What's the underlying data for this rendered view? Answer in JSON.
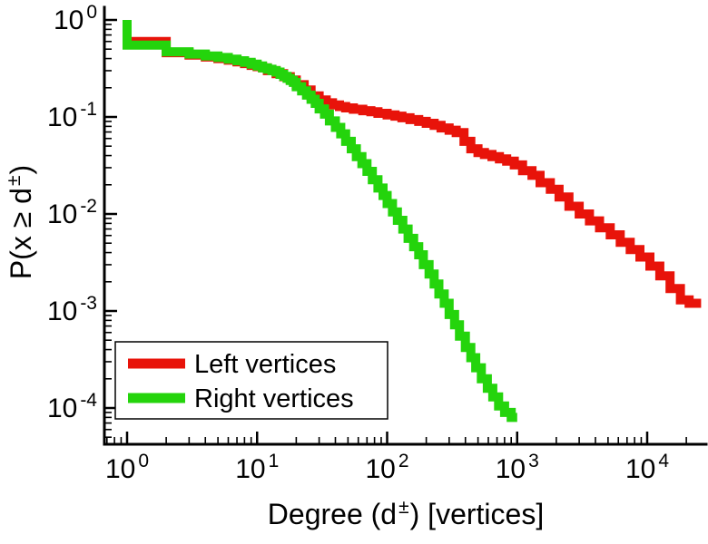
{
  "chart_data": {
    "type": "line",
    "subtype": "step-ccdf",
    "title": "",
    "xlabel": "Degree (d±) [vertices]",
    "ylabel": "P(x ≥ d±)",
    "xscale": "log",
    "yscale": "log",
    "xlim": [
      0.67,
      28000
    ],
    "ylim": [
      4.2e-05,
      1.35
    ],
    "grid": false,
    "tick_base": "10",
    "xtick_exponents": [
      0,
      1,
      2,
      3,
      4
    ],
    "ytick_exponents": [
      0,
      -1,
      -2,
      -3,
      -4
    ],
    "background_color": "#ffffff",
    "axis_color": "#000000",
    "legend": {
      "position": "lower-left",
      "border": true
    },
    "series": [
      {
        "name": "Left vertices",
        "color": "#e8130a",
        "points": [
          [
            1,
            1.0
          ],
          [
            2,
            0.6
          ],
          [
            3,
            0.46
          ],
          [
            4,
            0.435
          ],
          [
            5,
            0.415
          ],
          [
            6,
            0.4
          ],
          [
            7,
            0.385
          ],
          [
            8,
            0.37
          ],
          [
            9,
            0.355
          ],
          [
            10,
            0.34
          ],
          [
            11,
            0.33
          ],
          [
            12,
            0.32
          ],
          [
            14,
            0.3
          ],
          [
            16,
            0.28
          ],
          [
            18,
            0.26
          ],
          [
            20,
            0.24
          ],
          [
            23,
            0.215
          ],
          [
            26,
            0.19
          ],
          [
            30,
            0.165
          ],
          [
            34,
            0.15
          ],
          [
            38,
            0.14
          ],
          [
            43,
            0.133
          ],
          [
            48,
            0.128
          ],
          [
            55,
            0.124
          ],
          [
            65,
            0.12
          ],
          [
            75,
            0.116
          ],
          [
            85,
            0.113
          ],
          [
            100,
            0.109
          ],
          [
            115,
            0.105
          ],
          [
            130,
            0.102
          ],
          [
            150,
            0.098
          ],
          [
            175,
            0.094
          ],
          [
            200,
            0.09
          ],
          [
            230,
            0.086
          ],
          [
            260,
            0.082
          ],
          [
            300,
            0.077
          ],
          [
            340,
            0.073
          ],
          [
            390,
            0.069
          ],
          [
            440,
            0.056
          ],
          [
            500,
            0.047
          ],
          [
            560,
            0.043
          ],
          [
            640,
            0.041
          ],
          [
            730,
            0.039
          ],
          [
            830,
            0.037
          ],
          [
            950,
            0.035
          ],
          [
            1100,
            0.032
          ],
          [
            1300,
            0.028
          ],
          [
            1500,
            0.025
          ],
          [
            1800,
            0.021
          ],
          [
            2100,
            0.018
          ],
          [
            2500,
            0.015
          ],
          [
            3000,
            0.012
          ],
          [
            3600,
            0.01
          ],
          [
            4300,
            0.0085
          ],
          [
            5200,
            0.0072
          ],
          [
            6200,
            0.0061
          ],
          [
            7400,
            0.0051
          ],
          [
            8800,
            0.0043
          ],
          [
            10500,
            0.0036
          ],
          [
            12500,
            0.0029
          ],
          [
            15000,
            0.0023
          ],
          [
            18000,
            0.0017
          ],
          [
            21000,
            0.0013
          ],
          [
            26000,
            0.0012
          ]
        ]
      },
      {
        "name": "Right vertices",
        "color": "#24d40c",
        "points": [
          [
            1,
            1.0
          ],
          [
            2,
            0.55
          ],
          [
            3,
            0.47
          ],
          [
            4,
            0.445
          ],
          [
            5,
            0.425
          ],
          [
            6,
            0.41
          ],
          [
            7,
            0.395
          ],
          [
            8,
            0.38
          ],
          [
            9,
            0.365
          ],
          [
            10,
            0.35
          ],
          [
            11,
            0.335
          ],
          [
            12,
            0.32
          ],
          [
            13,
            0.31
          ],
          [
            14,
            0.3
          ],
          [
            15,
            0.29
          ],
          [
            16,
            0.275
          ],
          [
            17,
            0.262
          ],
          [
            18,
            0.25
          ],
          [
            19,
            0.238
          ],
          [
            20,
            0.227
          ],
          [
            22,
            0.205
          ],
          [
            24,
            0.186
          ],
          [
            26,
            0.168
          ],
          [
            28,
            0.152
          ],
          [
            30,
            0.138
          ],
          [
            33,
            0.121
          ],
          [
            36,
            0.107
          ],
          [
            40,
            0.091
          ],
          [
            44,
            0.078
          ],
          [
            48,
            0.067
          ],
          [
            53,
            0.056
          ],
          [
            58,
            0.047
          ],
          [
            64,
            0.039
          ],
          [
            70,
            0.033
          ],
          [
            77,
            0.0275
          ],
          [
            85,
            0.0225
          ],
          [
            93,
            0.0185
          ],
          [
            100,
            0.0155
          ],
          [
            110,
            0.0128
          ],
          [
            120,
            0.0105
          ],
          [
            132,
            0.0086
          ],
          [
            145,
            0.007
          ],
          [
            160,
            0.0056
          ],
          [
            175,
            0.0046
          ],
          [
            190,
            0.0038
          ],
          [
            210,
            0.003
          ],
          [
            230,
            0.0024
          ],
          [
            250,
            0.0019
          ],
          [
            275,
            0.0015
          ],
          [
            300,
            0.0012
          ],
          [
            330,
            0.00092
          ],
          [
            360,
            0.00072
          ],
          [
            400,
            0.00055
          ],
          [
            440,
            0.00042
          ],
          [
            480,
            0.00033
          ],
          [
            530,
            0.00026
          ],
          [
            590,
            0.0002
          ],
          [
            650,
            0.00016
          ],
          [
            720,
            0.00013
          ],
          [
            800,
            0.000105
          ],
          [
            900,
            9e-05
          ],
          [
            1000,
            8e-05
          ]
        ]
      }
    ]
  }
}
